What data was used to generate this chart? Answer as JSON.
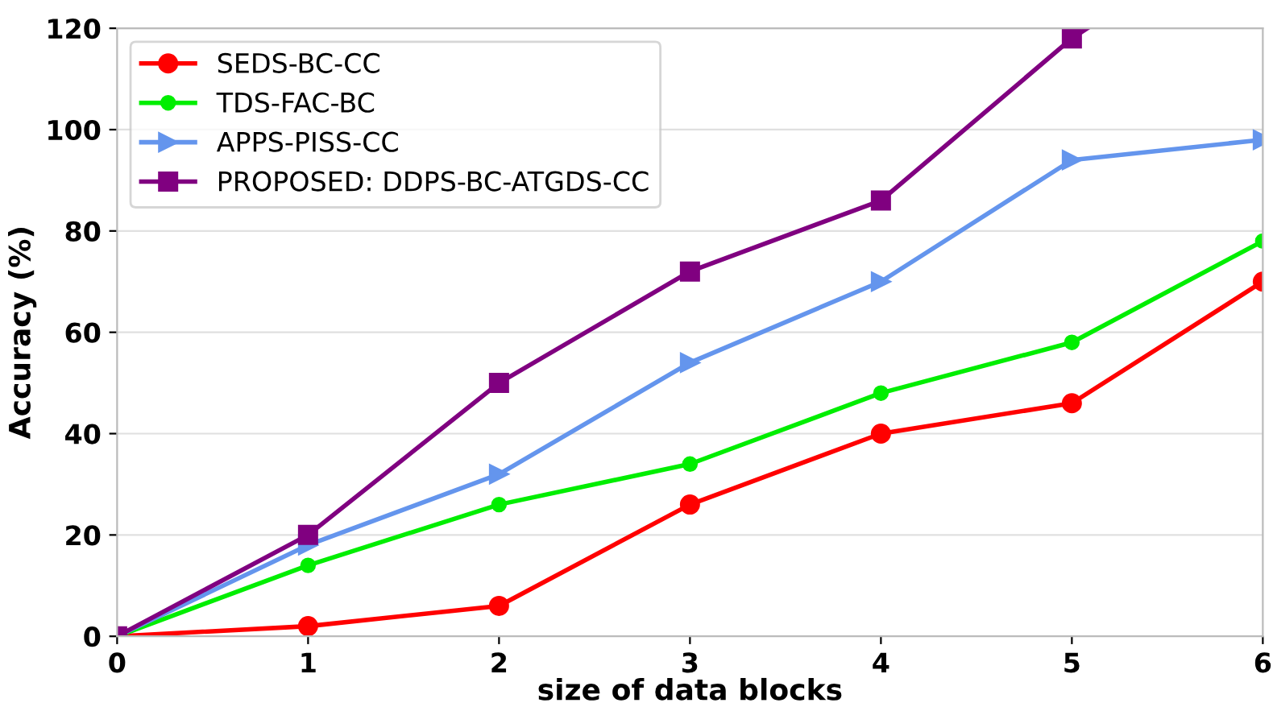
{
  "chart_data": {
    "type": "line",
    "xlabel": "size of data blocks",
    "ylabel": "Accuracy (%)",
    "x": [
      0,
      1,
      2,
      3,
      4,
      5,
      6
    ],
    "series": [
      {
        "name": "SEDS-BC-CC",
        "color": "#ff0000",
        "marker": "circle",
        "values": [
          0,
          2,
          6,
          26,
          40,
          46,
          70
        ]
      },
      {
        "name": "TDS-FAC-BC",
        "color": "#00ee00",
        "marker": "circle",
        "values": [
          0,
          14,
          26,
          34,
          48,
          58,
          78
        ]
      },
      {
        "name": "APPS-PISS-CC",
        "color": "#6495ed",
        "marker": "triangle",
        "values": [
          0,
          18,
          32,
          54,
          70,
          94,
          98
        ]
      },
      {
        "name": "PROPOSED: DDPS-BC-ATGDS-CC",
        "color": "#800080",
        "marker": "square",
        "x": [
          0,
          1,
          2,
          3,
          4,
          5,
          5.08
        ],
        "values": [
          0,
          20,
          50,
          72,
          86,
          118,
          120
        ]
      }
    ],
    "xlim": [
      0,
      6
    ],
    "xticks": [
      0,
      1,
      2,
      3,
      4,
      5,
      6
    ],
    "ylim": [
      0,
      120
    ],
    "yticks": [
      0,
      20,
      40,
      60,
      80,
      100,
      120
    ],
    "grid": "y",
    "legend": "top left",
    "line_style": "solid"
  }
}
